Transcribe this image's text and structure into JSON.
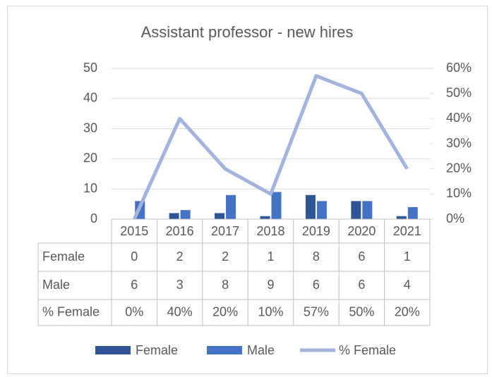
{
  "chart_data": {
    "type": "bar",
    "title": "Assistant professor  - new hires",
    "categories": [
      "2015",
      "2016",
      "2017",
      "2018",
      "2019",
      "2020",
      "2021"
    ],
    "series": [
      {
        "name": "Female",
        "type": "bar",
        "color": "#2f5597",
        "values": [
          0,
          2,
          2,
          1,
          8,
          6,
          1
        ]
      },
      {
        "name": "Male",
        "type": "bar",
        "color": "#4472c4",
        "values": [
          6,
          3,
          8,
          9,
          6,
          6,
          4
        ]
      },
      {
        "name": "% Female",
        "type": "line",
        "axis": "y2",
        "color": "#a3b3de",
        "values": [
          0,
          40,
          20,
          10,
          57,
          50,
          20
        ],
        "value_labels": [
          "0%",
          "40%",
          "20%",
          "10%",
          "57%",
          "50%",
          "20%"
        ]
      }
    ],
    "ylim": [
      0,
      50
    ],
    "yticks": [
      0,
      10,
      20,
      30,
      40,
      50
    ],
    "y2lim": [
      0,
      60
    ],
    "y2ticks": [
      {
        "value": 0,
        "label": "0%"
      },
      {
        "value": 10,
        "label": "10%"
      },
      {
        "value": 20,
        "label": "20%"
      },
      {
        "value": 30,
        "label": "30%"
      },
      {
        "value": 40,
        "label": "40%"
      },
      {
        "value": 50,
        "label": "50%"
      },
      {
        "value": 60,
        "label": "60%"
      }
    ],
    "grid": true,
    "legend": "bottom",
    "data_table": true
  }
}
